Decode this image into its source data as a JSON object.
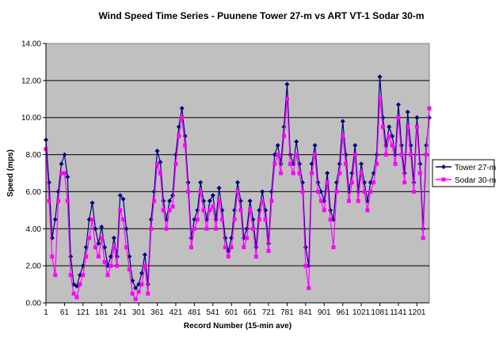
{
  "chart_data": {
    "type": "line",
    "title": "Wind Speed Time Series - Puunene Tower 27-m vs ART VT-1  Sodar 30-m",
    "xlabel": "Record Number (15-min ave)",
    "ylabel": "Speed (mps)",
    "ylim": [
      0,
      14
    ],
    "yticks": [
      "0.00",
      "2.00",
      "4.00",
      "6.00",
      "8.00",
      "10.00",
      "12.00",
      "14.00"
    ],
    "xlim": [
      1,
      1241
    ],
    "xticks": [
      "1",
      "61",
      "121",
      "181",
      "241",
      "301",
      "361",
      "421",
      "481",
      "541",
      "601",
      "661",
      "721",
      "781",
      "841",
      "901",
      "961",
      "1021",
      "1081",
      "1141",
      "1201"
    ],
    "grid": "horizontal",
    "legend": "right",
    "plot_background": "#c0c0c0",
    "series": [
      {
        "name": "Tower 27-m",
        "color": "#000080",
        "marker": "diamond",
        "x": [
          1,
          11,
          21,
          31,
          41,
          51,
          61,
          71,
          81,
          91,
          101,
          111,
          121,
          131,
          141,
          151,
          161,
          171,
          181,
          191,
          201,
          211,
          221,
          231,
          241,
          251,
          261,
          271,
          281,
          291,
          301,
          311,
          321,
          331,
          341,
          351,
          361,
          371,
          381,
          391,
          401,
          411,
          421,
          431,
          441,
          451,
          461,
          471,
          481,
          491,
          501,
          511,
          521,
          531,
          541,
          551,
          561,
          571,
          581,
          591,
          601,
          611,
          621,
          631,
          641,
          651,
          661,
          671,
          681,
          691,
          701,
          711,
          721,
          731,
          741,
          751,
          761,
          771,
          781,
          791,
          801,
          811,
          821,
          831,
          841,
          851,
          861,
          871,
          881,
          891,
          901,
          911,
          921,
          931,
          941,
          951,
          961,
          971,
          981,
          991,
          1001,
          1011,
          1021,
          1031,
          1041,
          1051,
          1061,
          1071,
          1081,
          1091,
          1101,
          1111,
          1121,
          1131,
          1141,
          1151,
          1161,
          1171,
          1181,
          1191,
          1201,
          1211,
          1221,
          1231,
          1241
        ],
        "values": [
          8.8,
          6.5,
          3.5,
          4.5,
          6.0,
          7.5,
          8.0,
          6.8,
          2.5,
          1.0,
          0.9,
          1.5,
          2.0,
          3.0,
          4.5,
          5.4,
          4.0,
          3.2,
          4.1,
          3.0,
          2.0,
          2.5,
          3.5,
          2.5,
          5.8,
          5.6,
          4.0,
          2.5,
          1.2,
          0.8,
          1.0,
          1.6,
          2.6,
          1.0,
          4.5,
          6.0,
          8.2,
          7.6,
          5.5,
          4.5,
          5.5,
          5.8,
          8.0,
          9.5,
          10.5,
          9.0,
          6.5,
          3.5,
          4.5,
          5.0,
          6.5,
          5.5,
          4.5,
          5.5,
          5.8,
          4.5,
          6.2,
          5.0,
          3.5,
          2.8,
          3.5,
          5.0,
          6.5,
          5.5,
          3.5,
          4.0,
          5.5,
          4.5,
          3.0,
          5.0,
          6.0,
          5.0,
          3.2,
          6.0,
          8.0,
          8.5,
          7.5,
          9.5,
          11.8,
          8.0,
          7.5,
          8.7,
          7.5,
          6.5,
          3.0,
          2.0,
          7.5,
          8.5,
          6.5,
          6.0,
          5.5,
          7.0,
          5.0,
          4.5,
          6.5,
          7.5,
          9.8,
          8.0,
          6.0,
          7.0,
          8.5,
          6.0,
          7.5,
          6.5,
          5.5,
          6.5,
          7.0,
          8.0,
          12.2,
          10.0,
          8.5,
          9.5,
          9.0,
          8.0,
          10.7,
          8.5,
          7.0,
          10.3,
          8.5,
          6.5,
          10.0,
          7.5,
          4.0,
          8.5,
          10.0
        ]
      },
      {
        "name": "Sodar 30-m",
        "color": "#ff00ff",
        "marker": "square",
        "x": [
          1,
          11,
          21,
          31,
          41,
          51,
          61,
          71,
          81,
          91,
          101,
          111,
          121,
          131,
          141,
          151,
          161,
          171,
          181,
          191,
          201,
          211,
          221,
          231,
          241,
          251,
          261,
          271,
          281,
          291,
          301,
          311,
          321,
          331,
          341,
          351,
          361,
          371,
          381,
          391,
          401,
          411,
          421,
          431,
          441,
          451,
          461,
          471,
          481,
          491,
          501,
          511,
          521,
          531,
          541,
          551,
          561,
          571,
          581,
          591,
          601,
          611,
          621,
          631,
          641,
          651,
          661,
          671,
          681,
          691,
          701,
          711,
          721,
          731,
          741,
          751,
          761,
          771,
          781,
          791,
          801,
          811,
          821,
          831,
          841,
          851,
          861,
          871,
          881,
          891,
          901,
          911,
          921,
          931,
          941,
          951,
          961,
          971,
          981,
          991,
          1001,
          1011,
          1021,
          1031,
          1041,
          1051,
          1061,
          1071,
          1081,
          1091,
          1101,
          1111,
          1121,
          1131,
          1141,
          1151,
          1161,
          1171,
          1181,
          1191,
          1201,
          1211,
          1221,
          1231,
          1241
        ],
        "values": [
          8.3,
          5.5,
          2.5,
          1.5,
          5.5,
          7.0,
          7.0,
          5.5,
          1.5,
          0.5,
          0.3,
          1.0,
          1.5,
          2.5,
          3.5,
          4.5,
          3.0,
          2.5,
          3.5,
          2.2,
          1.5,
          2.0,
          3.0,
          2.0,
          5.0,
          4.5,
          3.0,
          1.8,
          0.5,
          0.2,
          0.6,
          1.0,
          2.0,
          0.5,
          4.0,
          5.5,
          7.5,
          7.0,
          5.0,
          4.0,
          5.0,
          5.2,
          7.5,
          9.0,
          10.0,
          8.5,
          6.0,
          3.0,
          4.0,
          4.5,
          6.0,
          5.0,
          4.0,
          5.0,
          5.2,
          4.0,
          5.5,
          4.5,
          3.0,
          2.5,
          3.0,
          4.5,
          6.0,
          5.0,
          3.0,
          3.5,
          5.0,
          4.0,
          2.5,
          4.5,
          5.5,
          4.5,
          2.8,
          5.5,
          7.5,
          8.0,
          7.0,
          9.0,
          11.0,
          7.5,
          7.0,
          8.0,
          7.0,
          6.0,
          2.0,
          0.8,
          7.0,
          8.0,
          6.0,
          5.5,
          5.0,
          6.5,
          4.5,
          3.0,
          6.0,
          7.0,
          9.0,
          7.5,
          5.5,
          6.5,
          8.0,
          5.5,
          7.0,
          6.0,
          5.0,
          6.0,
          6.5,
          7.5,
          11.0,
          9.5,
          8.0,
          9.0,
          8.5,
          7.5,
          10.0,
          8.0,
          6.5,
          9.5,
          8.0,
          6.0,
          9.5,
          7.0,
          3.5,
          8.0,
          10.5
        ]
      }
    ]
  }
}
